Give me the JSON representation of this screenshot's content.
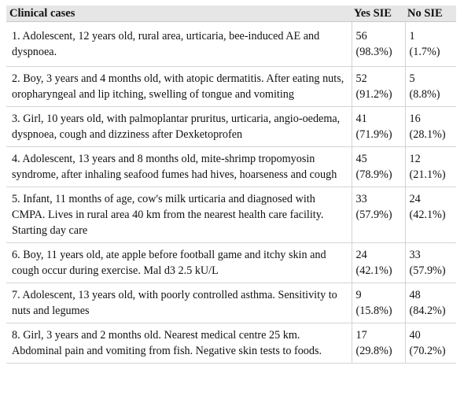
{
  "table": {
    "headers": [
      "Clinical cases",
      "Yes SIE",
      "No SIE"
    ],
    "rows": [
      {
        "case": "1. Adolescent, 12 years old, rural area, urticaria, bee-induced AE and dyspnoea.",
        "yes_n": "56",
        "yes_pct": "(98.3%)",
        "no_n": "1",
        "no_pct": "(1.7%)"
      },
      {
        "case": "2. Boy, 3 years and 4 months old, with atopic dermatitis. After eating nuts, oropharyngeal and lip itching, swelling of tongue and vomiting",
        "yes_n": "52",
        "yes_pct": "(91.2%)",
        "no_n": "5",
        "no_pct": "(8.8%)"
      },
      {
        "case": "3. Girl, 10 years old, with palmoplantar pruritus, urticaria, angio-oedema, dyspnoea, cough and dizziness after Dexketoprofen",
        "yes_n": "41",
        "yes_pct": "(71.9%)",
        "no_n": "16",
        "no_pct": "(28.1%)"
      },
      {
        "case": "4. Adolescent, 13 years and 8 months old, mite-shrimp tropomyosin syndrome, after inhaling seafood fumes had hives, hoarseness and cough",
        "yes_n": "45",
        "yes_pct": "(78.9%)",
        "no_n": "12",
        "no_pct": "(21.1%)"
      },
      {
        "case": "5. Infant, 11 months of age, cow's milk urticaria and diagnosed with CMPA. Lives in rural area 40 km from the nearest health care facility. Starting day care",
        "yes_n": "33",
        "yes_pct": "(57.9%)",
        "no_n": "24",
        "no_pct": "(42.1%)"
      },
      {
        "case": "6. Boy, 11 years old, ate apple before football game and itchy skin and cough occur during exercise. Mal d3 2.5 kU/L",
        "yes_n": "24",
        "yes_pct": "(42.1%)",
        "no_n": "33",
        "no_pct": "(57.9%)"
      },
      {
        "case": "7. Adolescent, 13 years old, with poorly controlled asthma. Sensitivity to nuts and legumes",
        "yes_n": "9",
        "yes_pct": "(15.8%)",
        "no_n": "48",
        "no_pct": "(84.2%)"
      },
      {
        "case": "8. Girl, 3 years and 2 months old. Nearest medical centre 25 km. Abdominal pain and vomiting from fish. Negative skin tests to foods.",
        "yes_n": "17",
        "yes_pct": "(29.8%)",
        "no_n": "40",
        "no_pct": "(70.2%)"
      }
    ]
  }
}
